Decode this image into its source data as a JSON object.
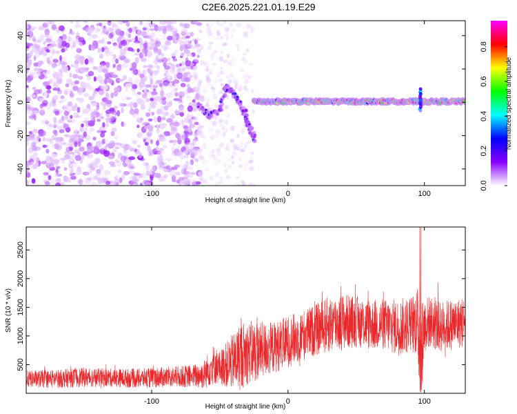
{
  "title": "C2E6.2025.221.01.19.E29",
  "chart_data": [
    {
      "type": "heatmap",
      "xlabel": "Height of straight line (km)",
      "ylabel": "Frequency (Hz)",
      "xlim": [
        -192,
        130
      ],
      "ylim": [
        -50,
        49
      ],
      "x_ticks": [
        -100,
        0,
        100
      ],
      "y_ticks": [
        -40,
        -20,
        0,
        20,
        40
      ],
      "colorbar": {
        "label": "Normalized spectral amplitude",
        "range": [
          0.0,
          0.95
        ],
        "ticks": [
          "0.0",
          "0.2",
          "0.4",
          "0.6",
          "0.8"
        ],
        "colors": [
          "#ffffff",
          "#8a00ff",
          "#0000ff",
          "#00ffff",
          "#00ff00",
          "#ffff00",
          "#ff0000",
          "#ff00ff"
        ]
      },
      "features": [
        {
          "name": "noise",
          "x_range": [
            -192,
            -65
          ],
          "freq_range": [
            -50,
            49
          ],
          "amplitude": 0.1
        },
        {
          "name": "scatter",
          "x_range": [
            -65,
            -25
          ],
          "freq_range": [
            -50,
            49
          ],
          "amplitude": 0.03
        },
        {
          "name": "branch",
          "x": [
            -65,
            -58,
            -50,
            -45,
            -40,
            -36,
            -32,
            -30,
            -27,
            -24
          ],
          "freq": [
            -3,
            -8,
            -5,
            10,
            5,
            0,
            -5,
            -12,
            -18,
            -23
          ],
          "amplitude": 0.3
        },
        {
          "name": "line",
          "x_range": [
            -25,
            130
          ],
          "freq": 0.5,
          "amplitude": 0.7
        },
        {
          "name": "spike",
          "x": 97,
          "freq_range": [
            -5,
            8
          ],
          "amplitude": 0.4
        }
      ]
    },
    {
      "type": "line",
      "xlabel": "Height of straight line (km)",
      "ylabel": "SNR (10 * v/v)",
      "xlim": [
        -192,
        130
      ],
      "ylim": [
        0,
        2900
      ],
      "x_ticks": [
        -100,
        0,
        100
      ],
      "y_ticks": [
        500,
        1000,
        1500,
        2000,
        2500
      ],
      "color": "#e8282b",
      "series": [
        {
          "x": [
            -190,
            -170,
            -150,
            -130,
            -110,
            -90,
            -70,
            -62,
            -55,
            -50,
            -45,
            -40,
            -35,
            -30,
            -25,
            -20,
            -10,
            0,
            10,
            20,
            30,
            40,
            50,
            60,
            70,
            80,
            90,
            95,
            97,
            100,
            105,
            110,
            120,
            130
          ],
          "baseline": [
            250,
            250,
            280,
            270,
            260,
            280,
            300,
            320,
            500,
            450,
            500,
            550,
            650,
            700,
            720,
            750,
            800,
            900,
            1000,
            1100,
            1200,
            1250,
            1250,
            1200,
            1200,
            1150,
            1200,
            1250,
            700,
            1200,
            1250,
            1150,
            1200,
            1250
          ],
          "amplitude": [
            150,
            160,
            170,
            160,
            170,
            180,
            200,
            250,
            350,
            300,
            400,
            500,
            600,
            550,
            550,
            500,
            450,
            450,
            450,
            450,
            500,
            500,
            450,
            450,
            450,
            500,
            500,
            600,
            1200,
            500,
            450,
            450,
            450,
            450
          ]
        }
      ]
    }
  ]
}
